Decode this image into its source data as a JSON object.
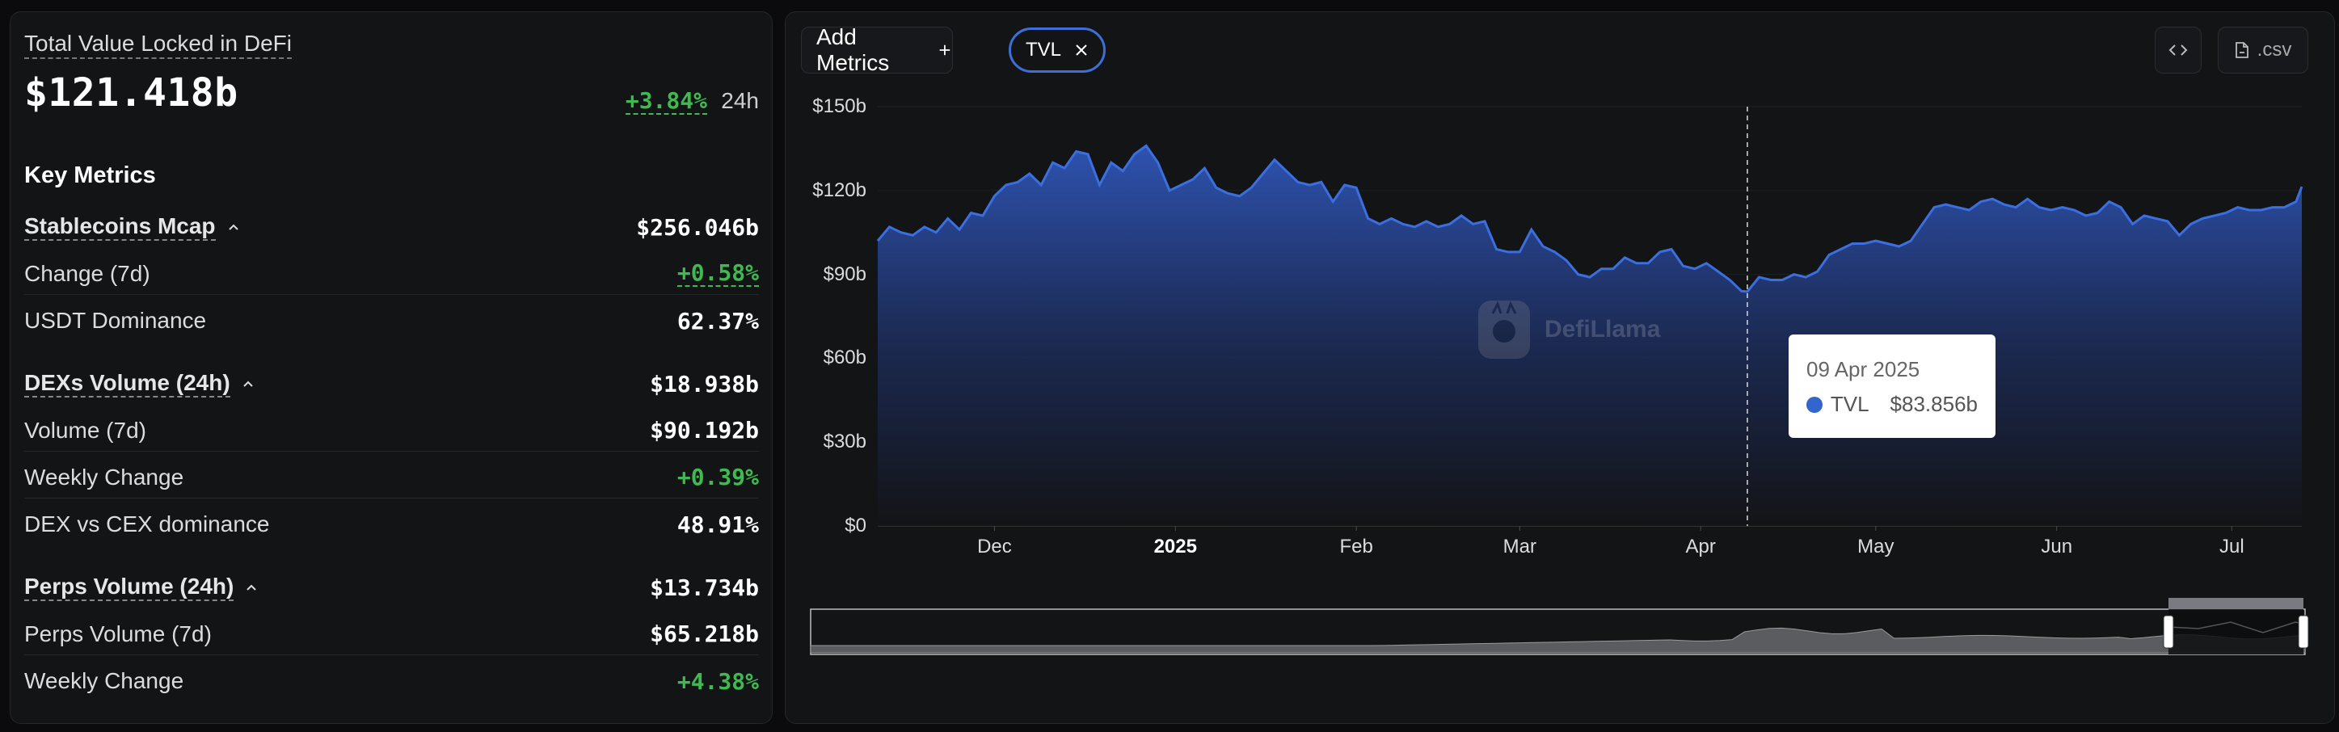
{
  "summary": {
    "title": "Total Value Locked in DeFi",
    "value": "$121.418b",
    "change": "+3.84%",
    "period": "24h"
  },
  "key_metrics": {
    "title": "Key Metrics",
    "stablecoins": {
      "label": "Stablecoins Mcap",
      "value": "$256.046b",
      "rows": [
        {
          "label": "Change (7d)",
          "value": "+0.58%"
        },
        {
          "label": "USDT Dominance",
          "value": "62.37%"
        }
      ]
    },
    "dexs": {
      "label": "DEXs Volume (24h)",
      "value": "$18.938b",
      "rows": [
        {
          "label": "Volume (7d)",
          "value": "$90.192b"
        },
        {
          "label": "Weekly Change",
          "value": "+0.39%"
        },
        {
          "label": "DEX vs CEX dominance",
          "value": "48.91%"
        }
      ]
    },
    "perps": {
      "label": "Perps Volume (24h)",
      "value": "$13.734b",
      "rows": [
        {
          "label": "Perps Volume (7d)",
          "value": "$65.218b"
        },
        {
          "label": "Weekly Change",
          "value": "+4.38%"
        }
      ]
    }
  },
  "toolbar": {
    "add_metrics_label": "Add Metrics",
    "chip_label": "TVL",
    "csv_label": ".csv"
  },
  "watermark": "DefiLlama",
  "tooltip": {
    "date": "09 Apr 2025",
    "series": "TVL",
    "value": "$83.856b"
  },
  "colors": {
    "accent": "#3d6fd6",
    "line": "#3b6fe0",
    "positive": "#3fb950",
    "panel": "#131416"
  },
  "chart_data": {
    "type": "area",
    "series": [
      {
        "name": "TVL",
        "unit": "$b"
      }
    ],
    "y_tick_labels": [
      "$0",
      "$30b",
      "$60b",
      "$90b",
      "$120b",
      "$150b"
    ],
    "ylim": [
      0,
      150
    ],
    "x_tick_labels": [
      "Dec",
      "2025",
      "Feb",
      "Mar",
      "Apr",
      "May",
      "Jun",
      "Jul"
    ],
    "x_tick_dates": [
      "2024-12-01",
      "2025-01-01",
      "2025-02-01",
      "2025-03-01",
      "2025-04-01",
      "2025-05-01",
      "2025-06-01",
      "2025-07-01"
    ],
    "x_start": "2024-11-11",
    "x_end": "2025-07-13",
    "points": [
      [
        "2024-11-11",
        102
      ],
      [
        "2024-11-13",
        107
      ],
      [
        "2024-11-15",
        105
      ],
      [
        "2024-11-17",
        104
      ],
      [
        "2024-11-19",
        107
      ],
      [
        "2024-11-21",
        105
      ],
      [
        "2024-11-23",
        110
      ],
      [
        "2024-11-25",
        106
      ],
      [
        "2024-11-27",
        112
      ],
      [
        "2024-11-29",
        111
      ],
      [
        "2024-12-01",
        118
      ],
      [
        "2024-12-03",
        122
      ],
      [
        "2024-12-05",
        123
      ],
      [
        "2024-12-07",
        126
      ],
      [
        "2024-12-09",
        122
      ],
      [
        "2024-12-11",
        130
      ],
      [
        "2024-12-13",
        128
      ],
      [
        "2024-12-15",
        134
      ],
      [
        "2024-12-17",
        133
      ],
      [
        "2024-12-19",
        122
      ],
      [
        "2024-12-21",
        130
      ],
      [
        "2024-12-23",
        127
      ],
      [
        "2024-12-25",
        133
      ],
      [
        "2024-12-27",
        136
      ],
      [
        "2024-12-29",
        130
      ],
      [
        "2024-12-31",
        120
      ],
      [
        "2025-01-02",
        122
      ],
      [
        "2025-01-04",
        124
      ],
      [
        "2025-01-06",
        128
      ],
      [
        "2025-01-08",
        121
      ],
      [
        "2025-01-10",
        119
      ],
      [
        "2025-01-12",
        118
      ],
      [
        "2025-01-14",
        121
      ],
      [
        "2025-01-16",
        126
      ],
      [
        "2025-01-18",
        131
      ],
      [
        "2025-01-20",
        127
      ],
      [
        "2025-01-22",
        123
      ],
      [
        "2025-01-24",
        122
      ],
      [
        "2025-01-26",
        123
      ],
      [
        "2025-01-28",
        116
      ],
      [
        "2025-01-30",
        122
      ],
      [
        "2025-02-01",
        121
      ],
      [
        "2025-02-03",
        110
      ],
      [
        "2025-02-05",
        108
      ],
      [
        "2025-02-07",
        110
      ],
      [
        "2025-02-09",
        108
      ],
      [
        "2025-02-11",
        107
      ],
      [
        "2025-02-13",
        109
      ],
      [
        "2025-02-15",
        107
      ],
      [
        "2025-02-17",
        108
      ],
      [
        "2025-02-19",
        111
      ],
      [
        "2025-02-21",
        108
      ],
      [
        "2025-02-23",
        109
      ],
      [
        "2025-02-25",
        99
      ],
      [
        "2025-02-27",
        98
      ],
      [
        "2025-03-01",
        98
      ],
      [
        "2025-03-03",
        106
      ],
      [
        "2025-03-05",
        100
      ],
      [
        "2025-03-07",
        98
      ],
      [
        "2025-03-09",
        95
      ],
      [
        "2025-03-11",
        90
      ],
      [
        "2025-03-13",
        89
      ],
      [
        "2025-03-15",
        92
      ],
      [
        "2025-03-17",
        92
      ],
      [
        "2025-03-19",
        96
      ],
      [
        "2025-03-21",
        94
      ],
      [
        "2025-03-23",
        94
      ],
      [
        "2025-03-25",
        98
      ],
      [
        "2025-03-27",
        99
      ],
      [
        "2025-03-29",
        93
      ],
      [
        "2025-03-31",
        92
      ],
      [
        "2025-04-02",
        94
      ],
      [
        "2025-04-04",
        91
      ],
      [
        "2025-04-06",
        88
      ],
      [
        "2025-04-08",
        84
      ],
      [
        "2025-04-09",
        83.856
      ],
      [
        "2025-04-11",
        89
      ],
      [
        "2025-04-13",
        88
      ],
      [
        "2025-04-15",
        88
      ],
      [
        "2025-04-17",
        90
      ],
      [
        "2025-04-19",
        89
      ],
      [
        "2025-04-21",
        91
      ],
      [
        "2025-04-23",
        97
      ],
      [
        "2025-04-25",
        99
      ],
      [
        "2025-04-27",
        101
      ],
      [
        "2025-04-29",
        101
      ],
      [
        "2025-05-01",
        102
      ],
      [
        "2025-05-03",
        101
      ],
      [
        "2025-05-05",
        100
      ],
      [
        "2025-05-07",
        102
      ],
      [
        "2025-05-09",
        108
      ],
      [
        "2025-05-11",
        114
      ],
      [
        "2025-05-13",
        115
      ],
      [
        "2025-05-15",
        114
      ],
      [
        "2025-05-17",
        113
      ],
      [
        "2025-05-19",
        116
      ],
      [
        "2025-05-21",
        117
      ],
      [
        "2025-05-23",
        115
      ],
      [
        "2025-05-25",
        114
      ],
      [
        "2025-05-27",
        117
      ],
      [
        "2025-05-29",
        114
      ],
      [
        "2025-05-31",
        113
      ],
      [
        "2025-06-02",
        114
      ],
      [
        "2025-06-04",
        113
      ],
      [
        "2025-06-06",
        111
      ],
      [
        "2025-06-08",
        112
      ],
      [
        "2025-06-10",
        116
      ],
      [
        "2025-06-12",
        114
      ],
      [
        "2025-06-14",
        108
      ],
      [
        "2025-06-16",
        111
      ],
      [
        "2025-06-18",
        110
      ],
      [
        "2025-06-20",
        109
      ],
      [
        "2025-06-22",
        104
      ],
      [
        "2025-06-24",
        108
      ],
      [
        "2025-06-26",
        110
      ],
      [
        "2025-06-28",
        111
      ],
      [
        "2025-06-30",
        112
      ],
      [
        "2025-07-02",
        114
      ],
      [
        "2025-07-04",
        113
      ],
      [
        "2025-07-06",
        113
      ],
      [
        "2025-07-08",
        114
      ],
      [
        "2025-07-10",
        114
      ],
      [
        "2025-07-12",
        116
      ],
      [
        "2025-07-13",
        121.4
      ]
    ],
    "highlight_date": "2025-04-09",
    "grid": "horizontal"
  }
}
